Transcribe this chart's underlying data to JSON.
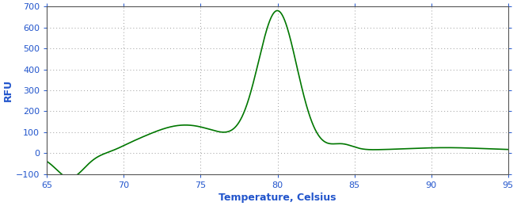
{
  "title": "",
  "xlabel": "Temperature, Celsius",
  "ylabel": "RFU",
  "xlim": [
    65,
    95
  ],
  "ylim": [
    -100,
    700
  ],
  "xticks": [
    65,
    70,
    75,
    80,
    85,
    90,
    95
  ],
  "yticks": [
    -100,
    0,
    100,
    200,
    300,
    400,
    500,
    600,
    700
  ],
  "line_color": "#007700",
  "bg_color": "#ffffff",
  "plot_bg_color": "#ffffff",
  "grid_color": "#999999",
  "label_color": "#2255cc",
  "tick_color": "#2255cc",
  "xlabel_fontsize": 9,
  "ylabel_fontsize": 9,
  "tick_fontsize": 8,
  "spine_color": "#555555"
}
